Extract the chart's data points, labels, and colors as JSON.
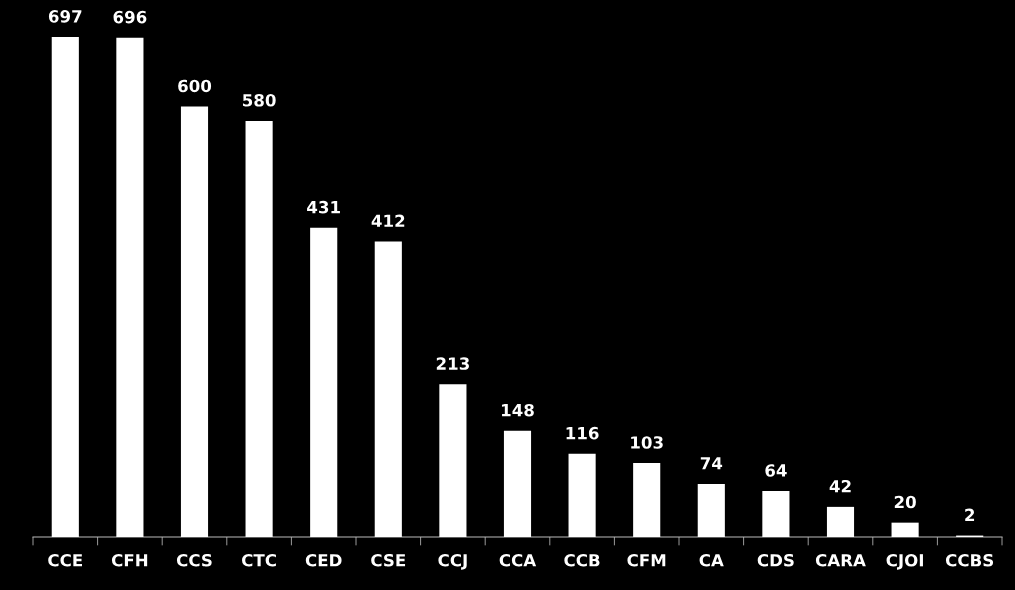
{
  "chart_data": {
    "type": "bar",
    "categories": [
      "CCE",
      "CFH",
      "CCS",
      "CTC",
      "CED",
      "CSE",
      "CCJ",
      "CCA",
      "CCB",
      "CFM",
      "CA",
      "CDS",
      "CARA",
      "CJOI",
      "CCBS"
    ],
    "values": [
      697,
      696,
      600,
      580,
      431,
      412,
      213,
      148,
      116,
      103,
      74,
      64,
      42,
      20,
      2
    ],
    "color": "#ffffff",
    "data_labels": true,
    "grid": false,
    "legend": false
  }
}
